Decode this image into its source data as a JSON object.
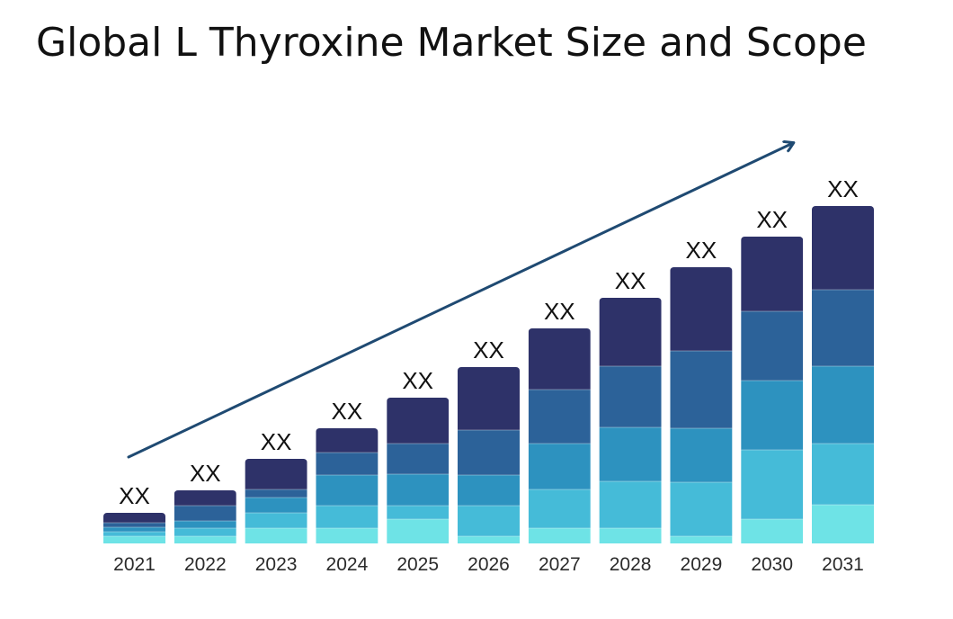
{
  "chart_data": {
    "type": "bar",
    "stacked": true,
    "title": "Global L Thyroxine Market Size and Scope",
    "xlabel": "",
    "ylabel": "",
    "categories": [
      "2021",
      "2022",
      "2023",
      "2024",
      "2025",
      "2026",
      "2027",
      "2028",
      "2029",
      "2030",
      "2031"
    ],
    "totals": [
      34,
      59,
      94,
      128,
      162,
      196,
      239,
      273,
      307,
      341,
      375
    ],
    "data_labels": [
      "XX",
      "XX",
      "XX",
      "XX",
      "XX",
      "XX",
      "XX",
      "XX",
      "XX",
      "XX",
      "XX"
    ],
    "series": [
      {
        "values": [
          8,
          8,
          17,
          17,
          27,
          8,
          17,
          17,
          8,
          27,
          43
        ]
      },
      {
        "values": [
          5,
          9,
          17,
          25,
          15,
          34,
          43,
          52,
          60,
          77,
          68
        ]
      },
      {
        "values": [
          5,
          8,
          17,
          34,
          35,
          34,
          51,
          60,
          60,
          77,
          86
        ]
      },
      {
        "values": [
          5,
          17,
          9,
          25,
          34,
          50,
          60,
          68,
          86,
          77,
          85
        ]
      },
      {
        "values": [
          11,
          17,
          34,
          27,
          51,
          70,
          68,
          76,
          93,
          83,
          93
        ]
      }
    ],
    "series_colors": [
      "#6ee3e6",
      "#45bbd8",
      "#2d92bf",
      "#2c6299",
      "#2e3269"
    ],
    "ylim": [
      0,
      400
    ],
    "grid": false,
    "legend": "none",
    "trend_arrow": true,
    "trend_arrow_color": "#1f4a72"
  }
}
